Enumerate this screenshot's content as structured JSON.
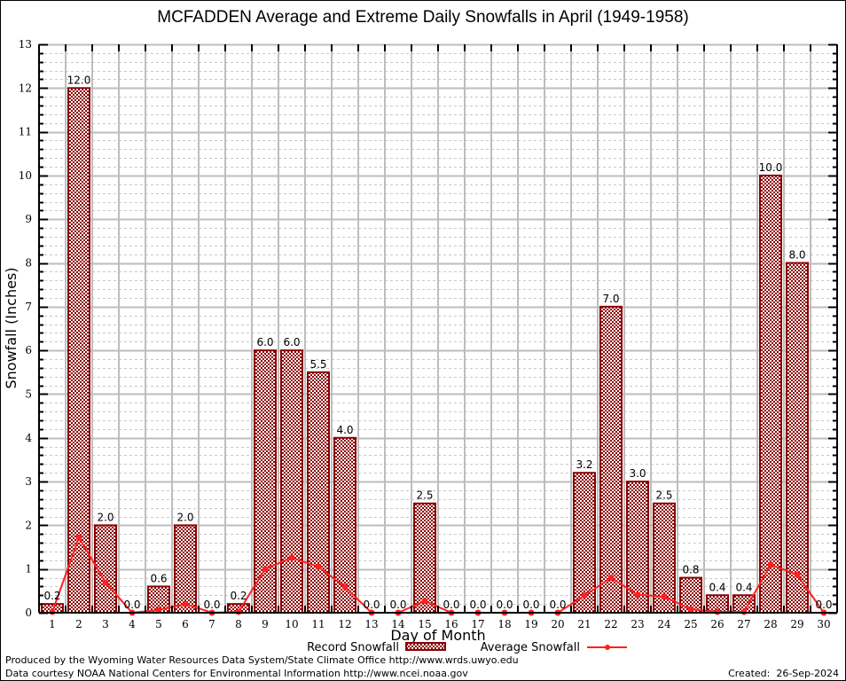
{
  "chart_data": {
    "type": "bar",
    "title": "MCFADDEN Average and Extreme Daily Snowfalls in April (1949-1958)",
    "xlabel": "Day of Month",
    "ylabel": "Snowfall (Inches)",
    "ylim": [
      0,
      13
    ],
    "yticks": [
      "0",
      "1",
      "2",
      "3",
      "4",
      "5",
      "6",
      "7",
      "8",
      "9",
      "10",
      "11",
      "12",
      "13"
    ],
    "categories": [
      "1",
      "2",
      "3",
      "4",
      "5",
      "6",
      "7",
      "8",
      "9",
      "10",
      "11",
      "12",
      "13",
      "14",
      "15",
      "16",
      "17",
      "18",
      "19",
      "20",
      "21",
      "22",
      "23",
      "24",
      "25",
      "26",
      "27",
      "28",
      "29",
      "30"
    ],
    "grid": true,
    "legend_position": "bottom",
    "series": [
      {
        "name": "Record Snowfall",
        "type": "bar",
        "color": "#8b0000",
        "values": [
          0.2,
          12.0,
          2.0,
          0.0,
          0.6,
          2.0,
          0.0,
          0.2,
          6.0,
          6.0,
          5.5,
          4.0,
          0.0,
          0.0,
          2.5,
          0.0,
          0.0,
          0.0,
          0.0,
          0.0,
          3.2,
          7.0,
          3.0,
          2.5,
          0.8,
          0.4,
          0.4,
          10.0,
          8.0,
          0.0
        ],
        "labels": [
          "0.2",
          "12.0",
          "2.0",
          "0.0",
          "0.6",
          "2.0",
          "0.0",
          "0.2",
          "6.0",
          "6.0",
          "5.5",
          "4.0",
          "0.0",
          "0.0",
          "2.5",
          "0.0",
          "0.0",
          "0.0",
          "0.0",
          "0.0",
          "3.2",
          "7.0",
          "3.0",
          "2.5",
          "0.8",
          "0.4",
          "0.4",
          "10.0",
          "8.0",
          "0.0"
        ]
      },
      {
        "name": "Average Snowfall",
        "type": "line",
        "color": "#ff2020",
        "values": [
          0.02,
          1.72,
          0.69,
          0.0,
          0.06,
          0.2,
          0.0,
          0.02,
          1.0,
          1.26,
          1.05,
          0.59,
          0.0,
          0.0,
          0.27,
          0.0,
          0.0,
          0.0,
          0.0,
          0.0,
          0.39,
          0.8,
          0.41,
          0.37,
          0.08,
          0.02,
          0.02,
          1.1,
          0.87,
          0.0
        ]
      }
    ]
  },
  "footer": {
    "produced_by": "Produced by the Wyoming Water Resources Data System/State Climate Office http://www.wrds.uwyo.edu",
    "data_courtesy": "Data courtesy NOAA National Centers for Environmental Information http://www.ncei.noaa.gov",
    "created": "Created:  26-Sep-2024"
  }
}
